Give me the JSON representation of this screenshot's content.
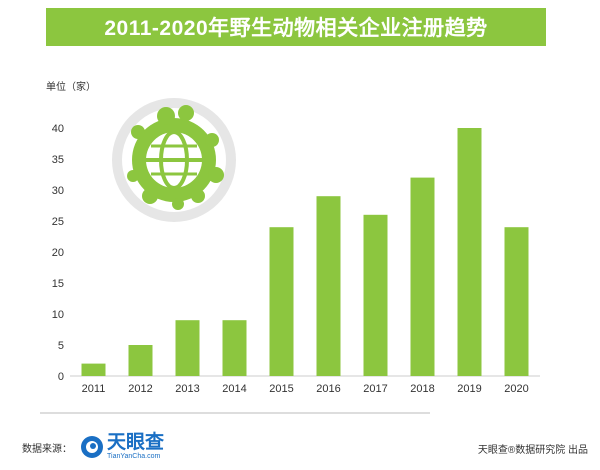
{
  "title": "2011-2020年野生动物相关企业注册趋势",
  "unit_label": "单位（家）",
  "footer": {
    "source_label": "数据来源：",
    "logo_brand": "天眼查",
    "logo_url": "TianYanCha.com",
    "credit": "天眼查®数据研究院 出品"
  },
  "colors": {
    "bar": "#8cc63f",
    "title_bg": "#8cc63f",
    "logo_blue": "#1a6fc4"
  },
  "chart_data": {
    "type": "bar",
    "title": "2011-2020年野生动物相关企业注册趋势",
    "ylabel": "单位（家）",
    "xlabel": "",
    "categories": [
      "2011",
      "2012",
      "2013",
      "2014",
      "2015",
      "2016",
      "2017",
      "2018",
      "2019",
      "2020"
    ],
    "values": [
      2,
      5,
      9,
      9,
      24,
      29,
      26,
      32,
      40,
      24
    ],
    "ylim": [
      0,
      40
    ],
    "yticks": [
      0,
      5,
      10,
      15,
      20,
      25,
      30,
      35,
      40
    ],
    "grid": false,
    "legend": "none"
  }
}
